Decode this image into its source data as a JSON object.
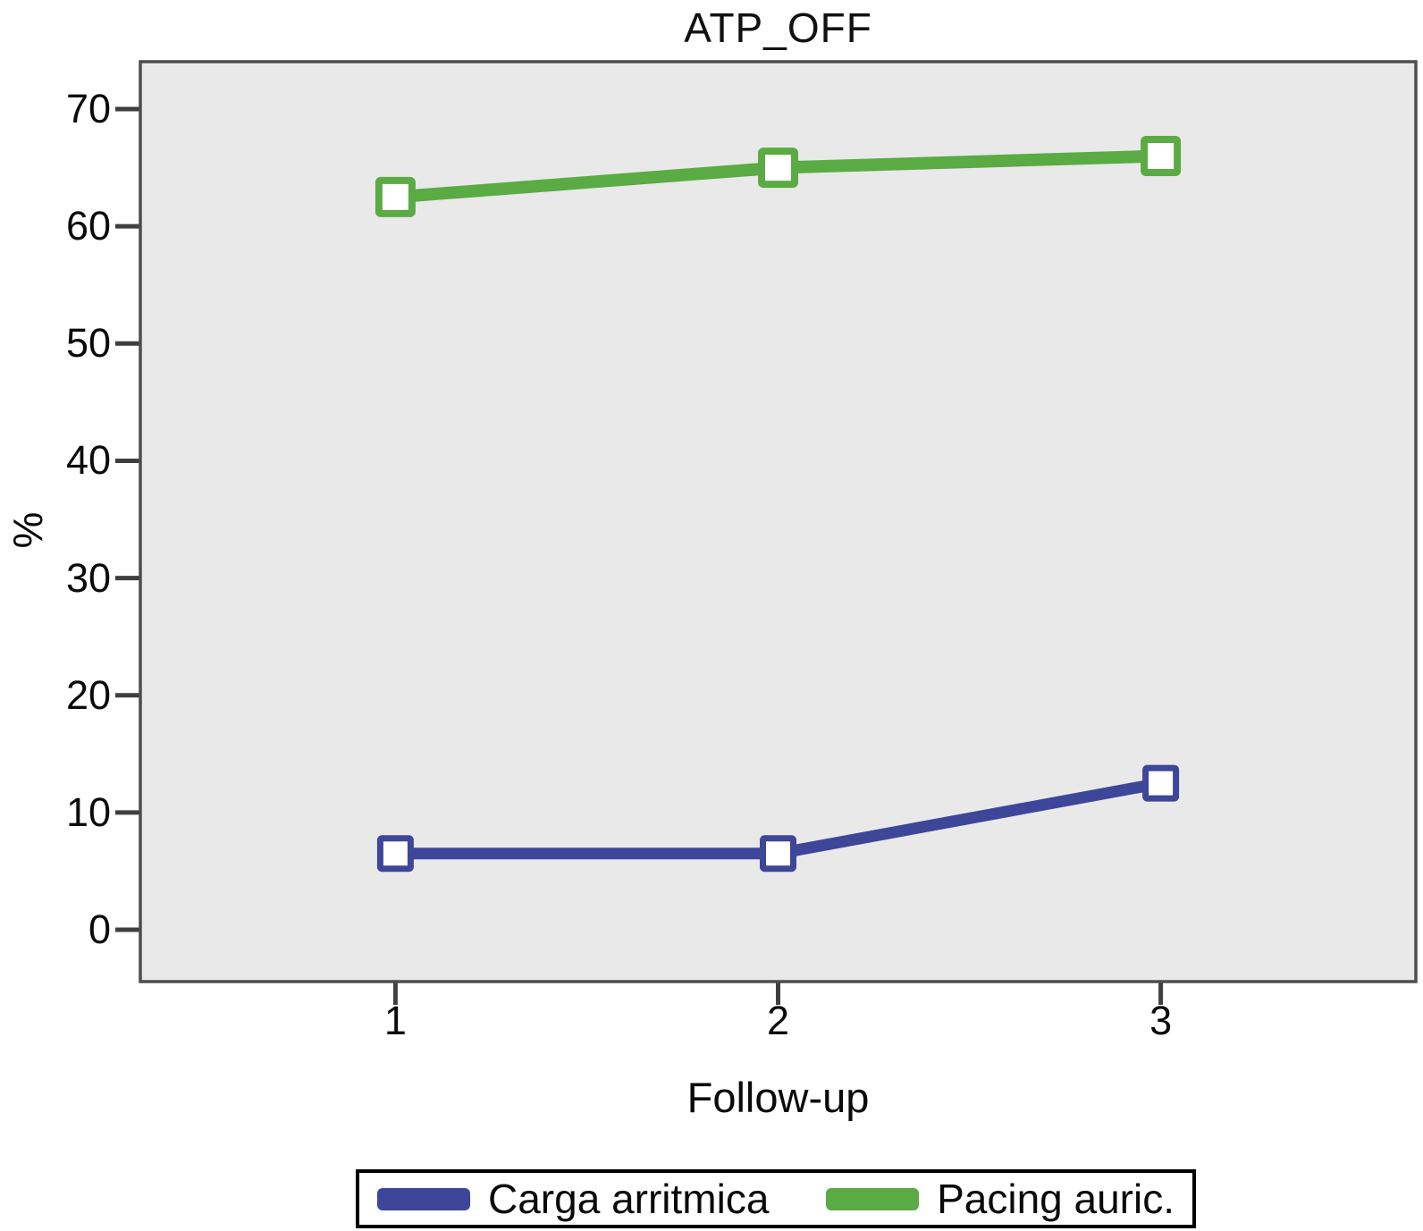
{
  "chart_data": {
    "type": "line",
    "title": "ATP_OFF",
    "xlabel": "Follow-up",
    "ylabel": "%",
    "x_tick_labels": [
      "1",
      "2",
      "3"
    ],
    "y_ticks": [
      0,
      10,
      20,
      30,
      40,
      50,
      60,
      70
    ],
    "ylim": [
      -4.4,
      74
    ],
    "grid": false,
    "legend_position": "bottom",
    "marker": "open-square",
    "series": [
      {
        "name": "Carga arritmica",
        "values": [
          6.5,
          6.5,
          12.5
        ],
        "color": "#3d4699"
      },
      {
        "name": "Pacing auric.",
        "values": [
          62.5,
          65,
          66
        ],
        "color": "#5aab43"
      }
    ]
  },
  "colors": {
    "plot_bg": "#e9e9e9",
    "plot_border": "#4d4d4d",
    "tick": "#3f3f3f",
    "legend_border": "#000000"
  }
}
